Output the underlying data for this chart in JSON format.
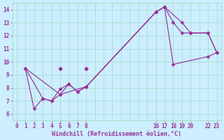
{
  "xlabel": "Windchill (Refroidissement éolien,°C)",
  "bg_color": "#cceeff",
  "grid_color": "#aaddcc",
  "line_color": "#993399",
  "xlim": [
    -0.5,
    23.5
  ],
  "ylim": [
    5.5,
    14.5
  ],
  "xticks": [
    0,
    1,
    2,
    3,
    4,
    5,
    6,
    7,
    8,
    16,
    17,
    18,
    19,
    20,
    22,
    23
  ],
  "yticks": [
    6,
    7,
    8,
    9,
    10,
    11,
    12,
    13,
    14
  ],
  "line1_x": [
    1,
    3,
    4,
    5,
    6,
    7,
    8,
    16,
    17,
    19,
    20,
    22,
    23
  ],
  "line1_y": [
    9.5,
    7.2,
    7.0,
    7.9,
    8.3,
    7.7,
    8.1,
    13.8,
    14.2,
    13.0,
    12.2,
    12.2,
    10.7
  ],
  "line2_x": [
    1,
    2,
    3,
    4,
    5,
    6,
    7,
    8,
    16,
    17,
    18,
    22,
    23
  ],
  "line2_y": [
    9.5,
    6.4,
    7.2,
    7.0,
    7.5,
    8.3,
    7.7,
    8.1,
    13.8,
    14.2,
    9.8,
    10.4,
    10.7
  ],
  "line3_x": [
    1,
    5,
    8,
    16,
    17,
    18,
    19,
    20,
    22,
    23
  ],
  "line3_y": [
    9.5,
    7.5,
    8.1,
    13.8,
    14.2,
    13.0,
    12.2,
    12.2,
    12.2,
    10.7
  ],
  "extra_points_x": [
    5,
    8
  ],
  "extra_points_y": [
    9.5,
    9.5
  ],
  "figw": 3.2,
  "figh": 2.0,
  "dpi": 100
}
